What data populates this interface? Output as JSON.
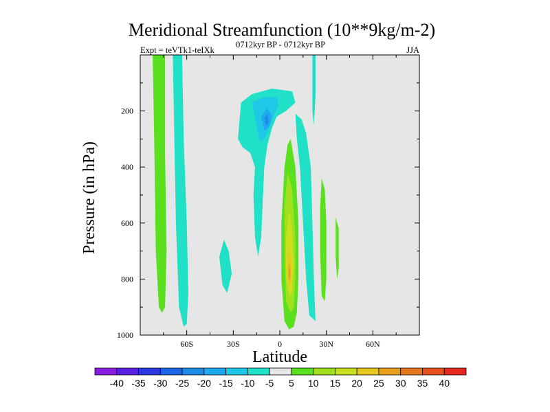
{
  "chart_data": {
    "type": "contour",
    "title": "Meridional Streamfunction (10**9kg/m-2)",
    "left_string": "Expt = teVTk1-teIXk",
    "center_string": "0712kyr BP - 0712kyr BP",
    "right_string": "JJA",
    "xlabel": "Latitude",
    "ylabel": "Pressure (in hPa)",
    "xlim": [
      -90,
      90
    ],
    "ylim": [
      1000,
      0
    ],
    "x_ticks": [
      {
        "value": -60,
        "label": "60S"
      },
      {
        "value": -30,
        "label": "30S"
      },
      {
        "value": 0,
        "label": "0"
      },
      {
        "value": 30,
        "label": "30N"
      },
      {
        "value": 60,
        "label": "60N"
      }
    ],
    "y_ticks": [
      {
        "value": 200,
        "label": "200"
      },
      {
        "value": 400,
        "label": "400"
      },
      {
        "value": 600,
        "label": "600"
      },
      {
        "value": 800,
        "label": "800"
      },
      {
        "value": 1000,
        "label": "1000"
      }
    ],
    "plot_background": "#e6e6e6",
    "colorbar": {
      "labels": [
        "-40",
        "-35",
        "-30",
        "-25",
        "-20",
        "-15",
        "-10",
        "-5",
        "5",
        "10",
        "15",
        "20",
        "25",
        "30",
        "35",
        "40"
      ],
      "colors": [
        "#8a1ee0",
        "#5a20e0",
        "#2a3ae0",
        "#1e64e6",
        "#1e8ce6",
        "#1eaaf0",
        "#1ec8e6",
        "#20e0c8",
        "#e6e6e6",
        "#5ae01e",
        "#a0e01e",
        "#c8e01e",
        "#e6c81e",
        "#e6a01e",
        "#e6781e",
        "#e6501e",
        "#e6281e"
      ]
    },
    "regions": [
      {
        "name": "green-band-75s",
        "level": "5",
        "color": "#5ae01e",
        "points": [
          [
            -82,
            0
          ],
          [
            -74,
            0
          ],
          [
            -74,
            350
          ],
          [
            -73,
            700
          ],
          [
            -74,
            900
          ],
          [
            -76,
            920
          ],
          [
            -78,
            900
          ],
          [
            -80,
            700
          ],
          [
            -81,
            300
          ]
        ]
      },
      {
        "name": "cyan-band-65s",
        "level": "-5",
        "color": "#20e0c8",
        "points": [
          [
            -69,
            0
          ],
          [
            -63,
            0
          ],
          [
            -62,
            300
          ],
          [
            -60,
            600
          ],
          [
            -59,
            850
          ],
          [
            -60,
            960
          ],
          [
            -62,
            970
          ],
          [
            -65,
            900
          ],
          [
            -67,
            600
          ],
          [
            -68,
            300
          ]
        ]
      },
      {
        "name": "cyan-blob-30s",
        "level": "-5",
        "color": "#20e0c8",
        "points": [
          [
            -39,
            720
          ],
          [
            -36,
            660
          ],
          [
            -33,
            700
          ],
          [
            -31,
            780
          ],
          [
            -34,
            850
          ],
          [
            -37,
            820
          ]
        ]
      },
      {
        "name": "cyan-upper-cell",
        "level": "-5",
        "color": "#20e0c8",
        "points": [
          [
            -27,
            300
          ],
          [
            -25,
            170
          ],
          [
            -18,
            140
          ],
          [
            -5,
            120
          ],
          [
            8,
            130
          ],
          [
            10,
            170
          ],
          [
            4,
            200
          ],
          [
            -2,
            220
          ],
          [
            -5,
            260
          ],
          [
            -8,
            320
          ],
          [
            -10,
            400
          ],
          [
            -11,
            520
          ],
          [
            -12,
            650
          ],
          [
            -14,
            720
          ],
          [
            -16,
            650
          ],
          [
            -17,
            500
          ],
          [
            -16,
            400
          ],
          [
            -19,
            350
          ],
          [
            -24,
            330
          ]
        ]
      },
      {
        "name": "cyan-band-10n",
        "level": "-5",
        "color": "#20e0c8",
        "points": [
          [
            10,
            210
          ],
          [
            14,
            230
          ],
          [
            17,
            280
          ],
          [
            20,
            400
          ],
          [
            21,
            600
          ],
          [
            22,
            800
          ],
          [
            23,
            950
          ],
          [
            19,
            930
          ],
          [
            17,
            800
          ],
          [
            15,
            600
          ],
          [
            13,
            400
          ],
          [
            11,
            300
          ]
        ]
      },
      {
        "name": "cyan-sliver-22n",
        "level": "-5",
        "color": "#20e0c8",
        "points": [
          [
            21,
            0
          ],
          [
            23,
            0
          ],
          [
            23,
            150
          ],
          [
            22,
            250
          ],
          [
            21,
            200
          ]
        ]
      },
      {
        "name": "green-band-28n",
        "level": "5",
        "color": "#5ae01e",
        "points": [
          [
            27,
            440
          ],
          [
            29,
            480
          ],
          [
            30,
            600
          ],
          [
            30,
            800
          ],
          [
            29,
            880
          ],
          [
            27,
            860
          ],
          [
            26,
            700
          ],
          [
            26,
            550
          ]
        ]
      },
      {
        "name": "green-sliver-38n",
        "level": "5",
        "color": "#5ae01e",
        "points": [
          [
            36,
            580
          ],
          [
            38,
            620
          ],
          [
            38,
            760
          ],
          [
            37,
            800
          ],
          [
            36,
            720
          ]
        ]
      },
      {
        "name": "green-eq-cell",
        "level": "5",
        "color": "#5ae01e",
        "points": [
          [
            7,
            300
          ],
          [
            10,
            400
          ],
          [
            12,
            600
          ],
          [
            12,
            800
          ],
          [
            11,
            920
          ],
          [
            9,
            970
          ],
          [
            6,
            980
          ],
          [
            3,
            950
          ],
          [
            1,
            800
          ],
          [
            1,
            600
          ],
          [
            3,
            400
          ],
          [
            5,
            320
          ]
        ]
      },
      {
        "name": "blue-upper-core",
        "level": "-10",
        "color": "#1ec8e6",
        "points": [
          [
            -18,
            170
          ],
          [
            -10,
            150
          ],
          [
            -2,
            150
          ],
          [
            -1,
            180
          ],
          [
            -4,
            220
          ],
          [
            -7,
            260
          ],
          [
            -10,
            300
          ],
          [
            -13,
            310
          ],
          [
            -15,
            250
          ]
        ]
      },
      {
        "name": "blue-upper-inner",
        "level": "-15",
        "color": "#1eaaf0",
        "points": [
          [
            -12,
            220
          ],
          [
            -8,
            190
          ],
          [
            -5,
            220
          ],
          [
            -7,
            260
          ],
          [
            -10,
            270
          ]
        ]
      },
      {
        "name": "blue-upper-deep",
        "level": "-20",
        "color": "#1e8ce6",
        "points": [
          [
            -10,
            225
          ],
          [
            -8,
            210
          ],
          [
            -7,
            240
          ],
          [
            -9,
            255
          ]
        ]
      },
      {
        "name": "yellowgreen-eq",
        "level": "10",
        "color": "#a0e01e",
        "points": [
          [
            5,
            420
          ],
          [
            8,
            480
          ],
          [
            10,
            650
          ],
          [
            10,
            800
          ],
          [
            9,
            900
          ],
          [
            7,
            920
          ],
          [
            4,
            880
          ],
          [
            3,
            700
          ],
          [
            3,
            550
          ]
        ]
      },
      {
        "name": "yellow-eq",
        "level": "15",
        "color": "#c8e01e",
        "points": [
          [
            6,
            560
          ],
          [
            8,
            620
          ],
          [
            9,
            750
          ],
          [
            8,
            850
          ],
          [
            6,
            860
          ],
          [
            4,
            800
          ],
          [
            4,
            650
          ]
        ]
      },
      {
        "name": "orange-eq",
        "level": "20",
        "color": "#e6c81e",
        "points": [
          [
            6,
            680
          ],
          [
            7,
            720
          ],
          [
            7.5,
            800
          ],
          [
            6,
            840
          ],
          [
            5,
            800
          ],
          [
            5,
            720
          ]
        ]
      },
      {
        "name": "deep-orange-eq",
        "level": "25",
        "color": "#e6a01e",
        "points": [
          [
            6,
            740
          ],
          [
            7,
            780
          ],
          [
            6,
            810
          ],
          [
            5.5,
            780
          ]
        ]
      }
    ]
  }
}
